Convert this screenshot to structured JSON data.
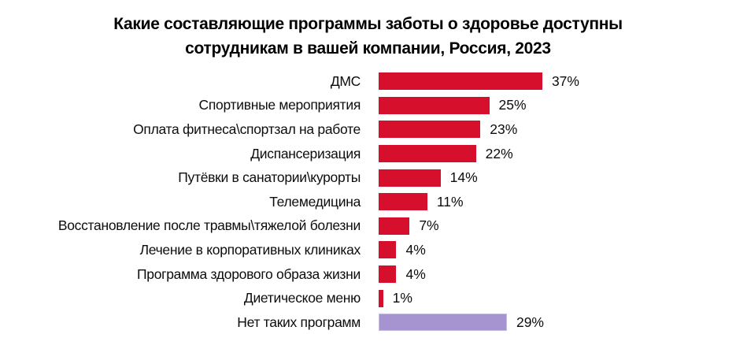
{
  "title": {
    "line1": "Какие составляющие программы заботы о здоровье доступны",
    "line2": "сотрудникам в вашей компании, Россия, 2023"
  },
  "colors": {
    "background": "#ffffff",
    "title_text": "#000000",
    "label_text": "#0d0d0d",
    "bar_red": "#d6102c",
    "bar_purple": "#a594cf",
    "bar_purple_border": "#c7bce4"
  },
  "chart_data": {
    "type": "bar",
    "orientation": "horizontal",
    "title": "Какие составляющие программы заботы о здоровье доступны сотрудникам в вашей компании, Россия, 2023",
    "xlabel": "",
    "ylabel": "",
    "unit": "%",
    "xlim": [
      0,
      40
    ],
    "grid": false,
    "legend": false,
    "categories": [
      "ДМС",
      "Спортивные мероприятия",
      "Оплата фитнеса\\спортзал на работе",
      "Диспансеризация",
      "Путёвки в санатории\\курорты",
      "Телемедицина",
      "Восстановление после травмы\\тяжелой болезни",
      "Лечение в корпоративных клиниках",
      "Программа здорового образа жизни",
      "Диетическое меню",
      "Нет таких программ"
    ],
    "values": [
      37,
      25,
      23,
      22,
      14,
      11,
      7,
      4,
      4,
      1,
      29
    ],
    "value_labels": [
      "37%",
      "25%",
      "23%",
      "22%",
      "14%",
      "11%",
      "7%",
      "4%",
      "4%",
      "1%",
      "29%"
    ],
    "bar_colors": [
      "#d6102c",
      "#d6102c",
      "#d6102c",
      "#d6102c",
      "#d6102c",
      "#d6102c",
      "#d6102c",
      "#d6102c",
      "#d6102c",
      "#d6102c",
      "#a594cf"
    ],
    "bar_border_colors": [
      "",
      "",
      "",
      "",
      "",
      "",
      "",
      "",
      "",
      "",
      "#c7bce4"
    ]
  }
}
